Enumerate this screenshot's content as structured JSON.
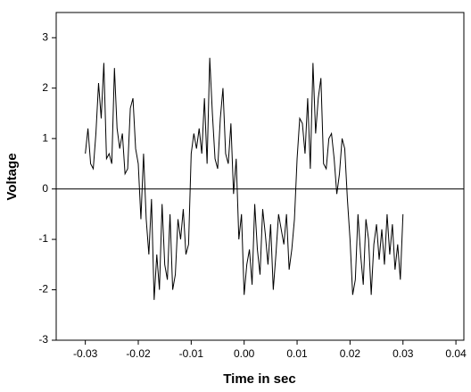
{
  "chart_data": {
    "type": "line",
    "x_label": "Time in sec",
    "y_label": "Voltage",
    "xlim": [
      -0.0355,
      0.0415
    ],
    "ylim": [
      -3,
      3.5
    ],
    "xticks": [
      -0.03,
      -0.02,
      -0.01,
      {
        "value": 0,
        "label": "0.00"
      },
      0.01,
      0.02,
      0.03,
      0.04
    ],
    "yticks": [
      -3,
      -2,
      -1,
      0,
      1,
      2,
      3
    ],
    "reference_line": 0,
    "x": [
      -0.03,
      -0.0295,
      -0.029,
      -0.0285,
      -0.028,
      -0.0275,
      -0.027,
      -0.0265,
      -0.026,
      -0.0255,
      -0.025,
      -0.0245,
      -0.024,
      -0.0235,
      -0.023,
      -0.0225,
      -0.022,
      -0.0215,
      -0.021,
      -0.0205,
      -0.02,
      -0.0195,
      -0.019,
      -0.0185,
      -0.018,
      -0.0175,
      -0.017,
      -0.0165,
      -0.016,
      -0.0155,
      -0.015,
      -0.0145,
      -0.014,
      -0.0135,
      -0.013,
      -0.0125,
      -0.012,
      -0.0115,
      -0.011,
      -0.0105,
      -0.01,
      -0.0095,
      -0.009,
      -0.0085,
      -0.008,
      -0.0075,
      -0.007,
      -0.0065,
      -0.006,
      -0.0055,
      -0.005,
      -0.0045,
      -0.004,
      -0.0035,
      -0.003,
      -0.0025,
      -0.002,
      -0.0015,
      -0.001,
      -0.0005,
      0,
      0.0005,
      0.001,
      0.0015,
      0.002,
      0.0025,
      0.003,
      0.0035,
      0.004,
      0.0045,
      0.005,
      0.0055,
      0.006,
      0.0065,
      0.007,
      0.0075,
      0.008,
      0.0085,
      0.009,
      0.0095,
      0.01,
      0.0105,
      0.011,
      0.0115,
      0.012,
      0.0125,
      0.013,
      0.0135,
      0.014,
      0.0145,
      0.015,
      0.0155,
      0.016,
      0.0165,
      0.017,
      0.0175,
      0.018,
      0.0185,
      0.019,
      0.0195,
      0.02,
      0.0205,
      0.021,
      0.0215,
      0.022,
      0.0225,
      0.023,
      0.0235,
      0.024,
      0.0245,
      0.025,
      0.0255,
      0.026,
      0.0265,
      0.027,
      0.0275,
      0.028,
      0.0285,
      0.029,
      0.0295,
      0.03
    ],
    "series": [
      {
        "color": "#000000",
        "values": [
          0.7,
          1.2,
          0.5,
          0.4,
          1.1,
          2.1,
          1.4,
          2.5,
          0.6,
          0.7,
          0.5,
          2.4,
          1.2,
          0.8,
          1.1,
          0.3,
          0.4,
          1.6,
          1.8,
          0.8,
          0.5,
          -0.6,
          0.7,
          -0.6,
          -1.3,
          -0.2,
          -2.2,
          -1.3,
          -2.0,
          -0.3,
          -1.5,
          -1.8,
          -0.5,
          -2.0,
          -1.7,
          -0.6,
          -1.0,
          -0.4,
          -1.3,
          -1.1,
          0.7,
          1.1,
          0.8,
          1.2,
          0.7,
          1.8,
          0.5,
          2.6,
          1.5,
          0.6,
          0.4,
          1.4,
          2.0,
          0.7,
          0.5,
          1.3,
          -0.1,
          0.6,
          -1.0,
          -0.5,
          -2.1,
          -1.5,
          -1.2,
          -1.9,
          -0.3,
          -1.2,
          -1.7,
          -0.4,
          -0.9,
          -1.5,
          -0.7,
          -2.0,
          -1.3,
          -0.5,
          -0.8,
          -1.1,
          -0.5,
          -1.6,
          -1.2,
          -0.6,
          0.6,
          1.4,
          1.3,
          0.7,
          1.8,
          0.4,
          2.5,
          1.1,
          1.8,
          2.2,
          0.5,
          0.4,
          1.0,
          1.1,
          0.6,
          -0.1,
          0.3,
          1.0,
          0.8,
          -0.2,
          -1.0,
          -2.1,
          -1.8,
          -0.5,
          -1.3,
          -1.9,
          -0.6,
          -1.0,
          -2.1,
          -1.1,
          -0.7,
          -1.4,
          -0.8,
          -1.5,
          -0.5,
          -1.3,
          -0.7,
          -1.6,
          -1.1,
          -1.8,
          -0.5
        ]
      }
    ]
  }
}
